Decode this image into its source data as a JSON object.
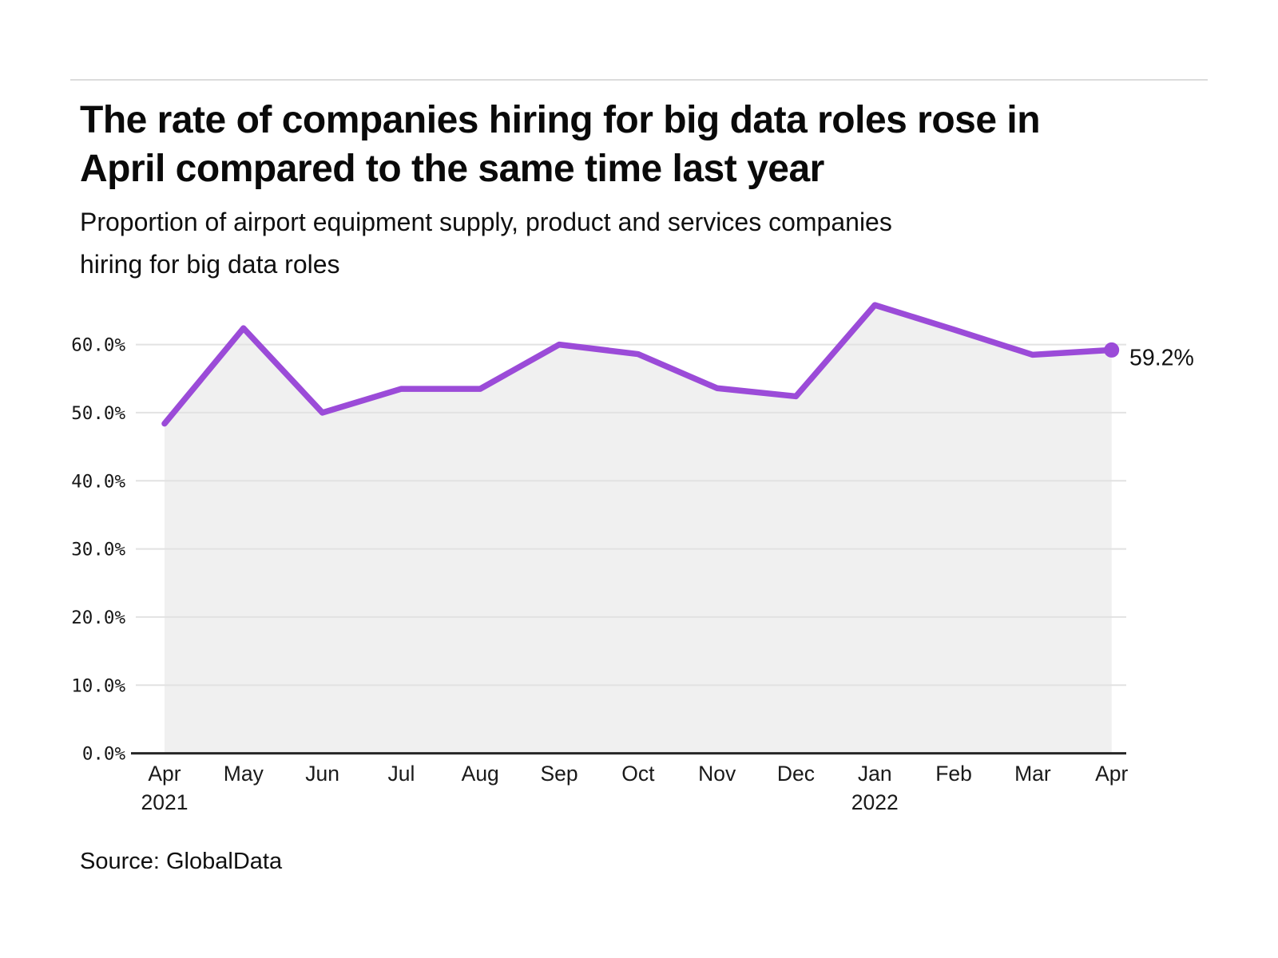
{
  "header": {
    "title_lines": [
      "The rate of companies hiring for big data roles rose in",
      "April compared to the same time last year"
    ],
    "subtitle_lines": [
      "Proportion of airport equipment supply, product and services companies",
      "hiring for big data roles"
    ]
  },
  "source": {
    "label": "Source: GlobalData"
  },
  "chart_data": {
    "type": "area",
    "title": "The rate of companies hiring for big data roles rose in April compared to the same time last year",
    "subtitle": "Proportion of airport equipment supply, product and services companies hiring for big data roles",
    "series_name": "Proportion of companies hiring for big data roles",
    "categories": [
      "Apr 2021",
      "May 2021",
      "Jun 2021",
      "Jul 2021",
      "Aug 2021",
      "Sep 2021",
      "Oct 2021",
      "Nov 2021",
      "Dec 2021",
      "Jan 2022",
      "Feb 2022",
      "Mar 2022",
      "Apr 2022"
    ],
    "values": [
      48.4,
      62.4,
      50.0,
      53.5,
      53.5,
      60.0,
      58.6,
      53.6,
      52.4,
      65.8,
      62.2,
      58.5,
      59.2
    ],
    "x_ticks": [
      {
        "label": "Apr",
        "year": "2021"
      },
      {
        "label": "May"
      },
      {
        "label": "Jun"
      },
      {
        "label": "Jul"
      },
      {
        "label": "Aug"
      },
      {
        "label": "Sep"
      },
      {
        "label": "Oct"
      },
      {
        "label": "Nov"
      },
      {
        "label": "Dec"
      },
      {
        "label": "Jan",
        "year": "2022"
      },
      {
        "label": "Feb"
      },
      {
        "label": "Mar"
      },
      {
        "label": "Apr"
      }
    ],
    "y_ticks": [
      {
        "value": 0,
        "label": "0.0%"
      },
      {
        "value": 10,
        "label": "10.0%"
      },
      {
        "value": 20,
        "label": "20.0%"
      },
      {
        "value": 30,
        "label": "30.0%"
      },
      {
        "value": 40,
        "label": "40.0%"
      },
      {
        "value": 50,
        "label": "50.0%"
      },
      {
        "value": 60,
        "label": "60.0%"
      }
    ],
    "ylim": [
      0,
      68
    ],
    "grid": "horizontal",
    "legend": "none",
    "end_label": "59.2%",
    "colors": {
      "line": "#9B4BD8",
      "marker": "#9B4BD8",
      "area_fill": "#F0F0F0",
      "gridline": "#E2E2E2",
      "axis_line": "#262626",
      "text": "#161616"
    }
  }
}
